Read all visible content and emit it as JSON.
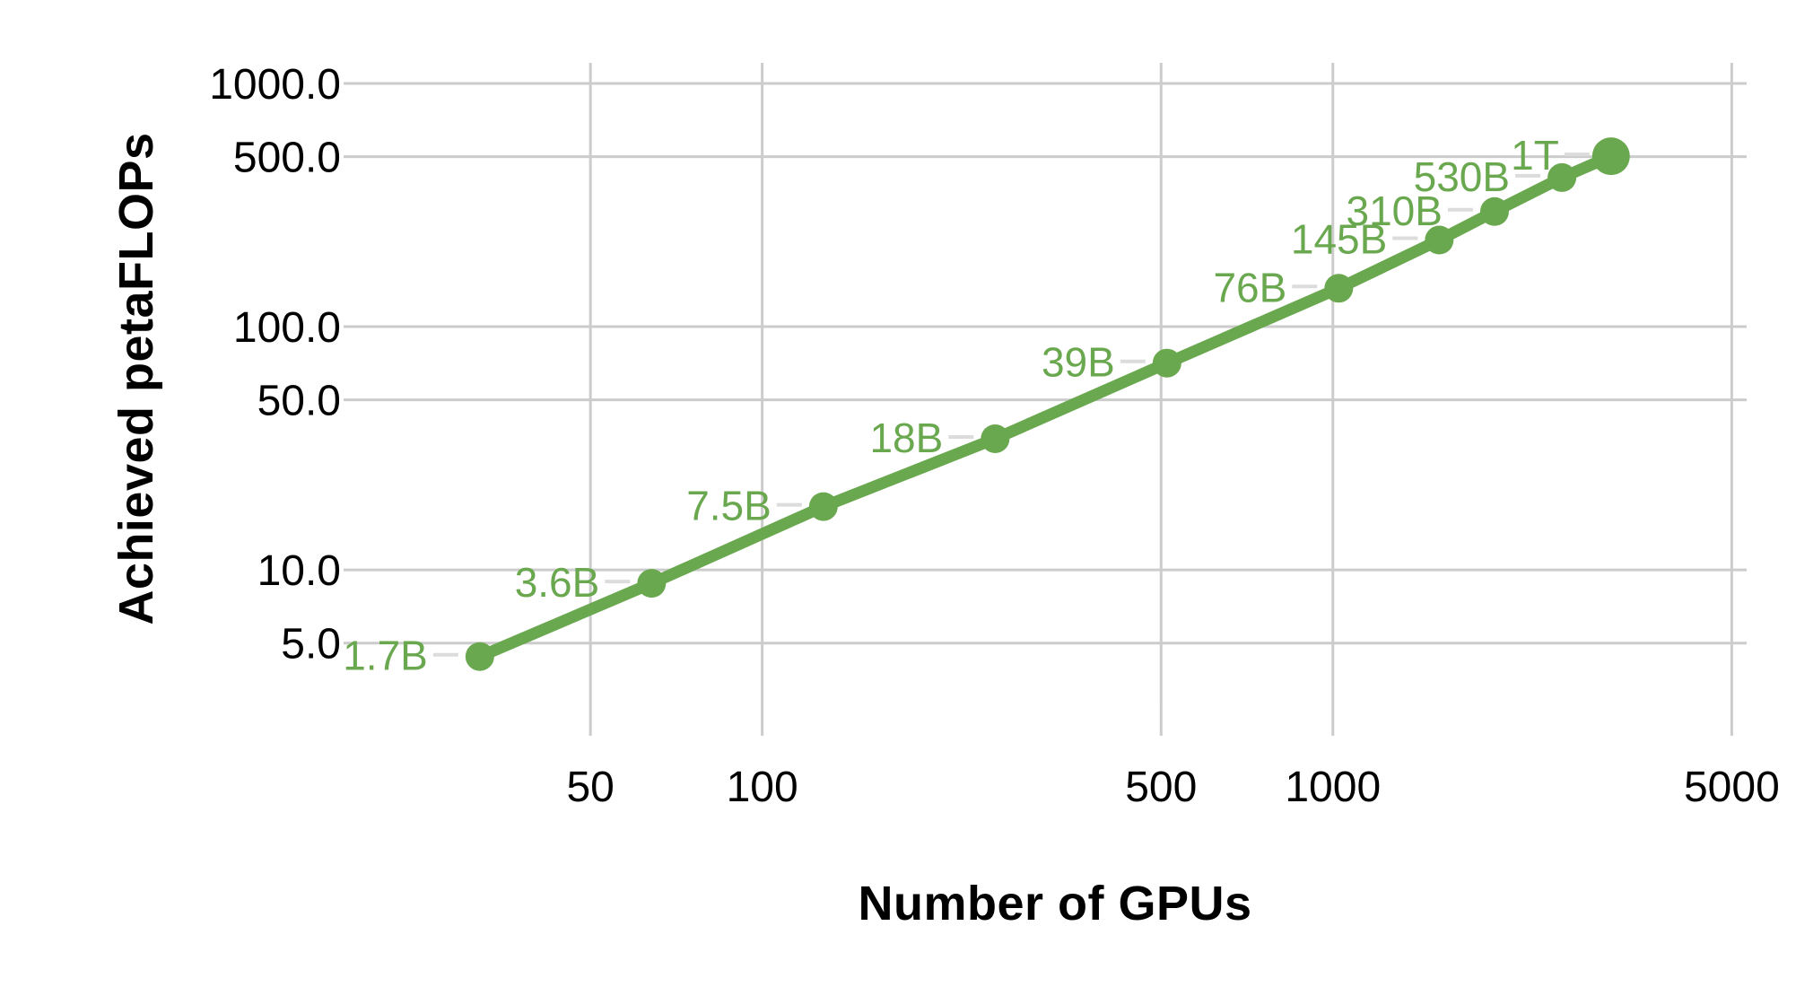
{
  "chart_data": {
    "type": "line",
    "title": "",
    "xlabel": "Number of GPUs",
    "ylabel": "Achieved petaFLOPs",
    "x_scale": "log",
    "y_scale": "log",
    "grid": true,
    "legend": "none",
    "x_range": [
      20,
      5310
    ],
    "y_range": [
      2.92,
      1216
    ],
    "x_ticks": {
      "values": [
        50,
        100,
        500,
        1000,
        5000
      ],
      "labels": [
        "50",
        "100",
        "500",
        "1000",
        "5000"
      ]
    },
    "y_ticks": {
      "values": [
        1000,
        500,
        100,
        50,
        10,
        5
      ],
      "labels": [
        "1000.0",
        "500.0",
        "100.0",
        "50.0",
        "10.0",
        "5.0"
      ]
    },
    "series": [
      {
        "name": "Achieved petaFLOPs",
        "color": "#6aa84f",
        "points": [
          {
            "label": "1.7B",
            "gpus": 32,
            "petaflops": 4.4
          },
          {
            "label": "3.6B",
            "gpus": 64,
            "petaflops": 8.8
          },
          {
            "label": "7.5B",
            "gpus": 128,
            "petaflops": 18.2
          },
          {
            "label": "18B",
            "gpus": 256,
            "petaflops": 34.6
          },
          {
            "label": "39B",
            "gpus": 512,
            "petaflops": 70.8
          },
          {
            "label": "76B",
            "gpus": 1024,
            "petaflops": 143.8
          },
          {
            "label": "145B",
            "gpus": 1536,
            "petaflops": 227.1
          },
          {
            "label": "310B",
            "gpus": 1920,
            "petaflops": 297.4
          },
          {
            "label": "530B",
            "gpus": 2520,
            "petaflops": 410.2
          },
          {
            "label": "1T",
            "gpus": 3072,
            "petaflops": 502.0
          }
        ]
      }
    ],
    "colors": {
      "series_green": "#6aa84f",
      "gridline": "#cccccc",
      "label_leader": "#dcdcdc",
      "text": "#000000",
      "background": "#ffffff"
    }
  }
}
